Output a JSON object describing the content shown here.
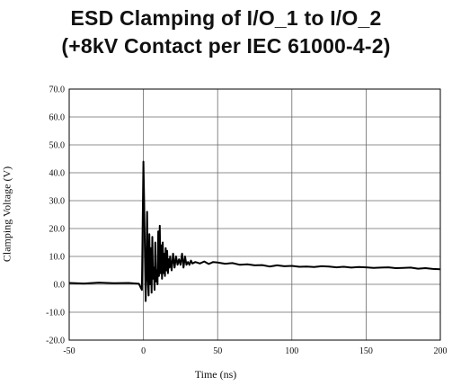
{
  "chart_data": {
    "type": "line",
    "title": "ESD Clamping of I/O_1 to I/O_2",
    "subtitle": "(+8kV Contact per IEC 61000-4-2)",
    "xlabel": "Time (ns)",
    "ylabel": "Clamping Voltage (V)",
    "xlim": [
      -50,
      200
    ],
    "ylim": [
      -20,
      70
    ],
    "xticks": [
      "-50",
      "0",
      "50",
      "100",
      "150",
      "200"
    ],
    "yticks": [
      "70.0",
      "60.0",
      "50.0",
      "40.0",
      "30.0",
      "20.0",
      "10.0",
      "0.0",
      "-10.0",
      "-20.0"
    ],
    "grid": true,
    "x": [
      -50,
      -40,
      -30,
      -20,
      -10,
      -3,
      -1,
      0,
      0.5,
      1,
      1.5,
      2,
      2.5,
      3,
      3.5,
      4,
      4.5,
      5,
      5.5,
      6,
      6.5,
      7,
      7.5,
      8,
      8.5,
      9,
      9.5,
      10,
      10.5,
      11,
      11.5,
      12,
      12.5,
      13,
      13.5,
      14,
      14.5,
      15,
      15.5,
      16,
      16.5,
      17,
      17.5,
      18,
      19,
      20,
      21,
      22,
      23,
      24,
      25,
      26,
      27,
      28,
      29,
      30,
      31,
      32,
      33,
      35,
      38,
      41,
      44,
      47,
      50,
      55,
      60,
      65,
      70,
      75,
      80,
      85,
      90,
      95,
      100,
      105,
      110,
      115,
      120,
      125,
      130,
      135,
      140,
      145,
      150,
      155,
      160,
      165,
      170,
      175,
      180,
      185,
      190,
      195,
      200
    ],
    "y": [
      0.5,
      0.3,
      0.6,
      0.4,
      0.5,
      0.2,
      -2,
      44,
      30,
      10,
      -6,
      5,
      26,
      2,
      -4,
      18,
      0,
      13,
      -3,
      17,
      2,
      6,
      -2,
      15,
      1,
      5,
      0,
      19,
      3,
      21,
      4,
      14,
      2,
      15,
      4,
      11,
      3,
      13,
      5,
      12,
      4,
      9,
      6,
      10,
      5,
      11,
      6,
      10,
      7,
      9,
      7,
      11,
      6,
      10,
      7,
      8,
      7,
      8.5,
      7.5,
      8,
      7.5,
      8.2,
      7.3,
      8,
      7.8,
      7.4,
      7.6,
      7,
      7.2,
      6.8,
      6.9,
      6.4,
      6.8,
      6.5,
      6.6,
      6.3,
      6.4,
      6.2,
      6.5,
      6.4,
      6.1,
      6.3,
      6,
      6.2,
      6.1,
      5.9,
      6,
      6.1,
      5.8,
      5.9,
      6,
      5.6,
      5.8,
      5.5,
      5.4
    ]
  }
}
